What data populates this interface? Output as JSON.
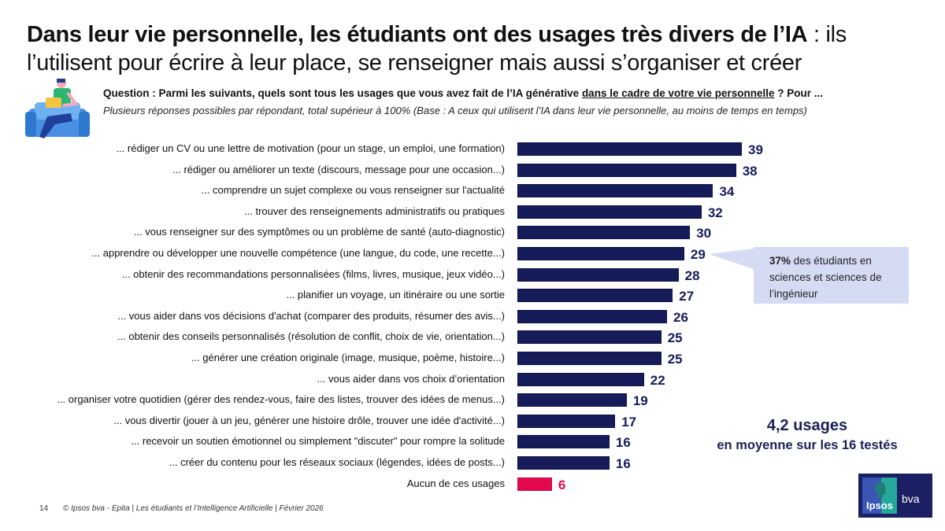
{
  "title": {
    "bold": "Dans leur vie personnelle, les étudiants ont des usages très divers de l’IA",
    "rest": " : ils l’utilisent pour écrire à leur place, se renseigner mais aussi s’organiser et créer"
  },
  "question": {
    "prefix": "Question : Parmi les suivants, quels sont tous les usages que vous avez fait de l’IA générative ",
    "underlined": "dans le cadre de votre vie personnelle",
    "suffix": " ? Pour ...",
    "base": "Plusieurs réponses possibles par répondant, total supérieur à 100% (Base : A ceux qui utilisent l’IA dans leur vie personnelle, au moins de temps en temps)"
  },
  "callout": {
    "bold": "37%",
    "text": " des étudiants en sciences et sciences de l’ingénieur",
    "points_to": "... apprendre ou développer une nouvelle compétence (une langue, du code, une recette...)"
  },
  "average": {
    "value": "4,2 usages",
    "text": "en moyenne sur les 16 testés"
  },
  "footer": {
    "page": "14",
    "source": "© Ipsos bva - Epita | Les étudiants et l’Intelligence Artificielle | Février 2026"
  },
  "logo": {
    "brand": "Ipsos",
    "sub": "bva"
  },
  "colors": {
    "bar": "#161c5a",
    "none_bar": "#e4084f",
    "value_text": "#161c5a",
    "none_value_text": "#e4084f",
    "callout_bg": "#d5dbf3"
  },
  "chart_data": {
    "type": "bar",
    "orientation": "horizontal",
    "title": "",
    "xlabel": "",
    "ylabel": "",
    "unit": "%",
    "xlim": [
      0,
      39
    ],
    "grid": false,
    "categories": [
      "... rédiger un CV ou une lettre de motivation (pour un stage, un emploi, une formation)",
      "... rédiger ou améliorer un texte (discours, message pour une occasion...)",
      "... comprendre un sujet complexe ou vous renseigner sur l'actualité",
      "... trouver des renseignements administratifs ou pratiques",
      "... vous renseigner sur des symptômes ou un problème de santé (auto-diagnostic)",
      "... apprendre ou développer une nouvelle compétence (une langue, du code, une recette...)",
      "... obtenir des recommandations personnalisées (films, livres, musique, jeux vidéo...)",
      "... planifier un voyage, un itinéraire ou une sortie",
      "... vous aider dans vos décisions d'achat (comparer des produits, résumer des avis...)",
      "... obtenir des conseils personnalisés (résolution de conflit, choix de vie, orientation...)",
      "... générer une création originale (image, musique, poème, histoire...)",
      "... vous aider dans vos choix d’orientation",
      "... organiser votre quotidien (gérer des rendez-vous, faire des listes, trouver des idées de menus...)",
      "... vous divertir (jouer à un jeu, générer une histoire drôle, trouver une idée d'activité...)",
      "... recevoir un soutien émotionnel ou simplement \"discuter\" pour rompre la solitude",
      "... créer du contenu pour les réseaux sociaux (légendes, idées de posts...)",
      "Aucun de ces usages"
    ],
    "values": [
      39,
      38,
      34,
      32,
      30,
      29,
      28,
      27,
      26,
      25,
      25,
      22,
      19,
      17,
      16,
      16,
      6
    ],
    "highlight_last": true
  }
}
